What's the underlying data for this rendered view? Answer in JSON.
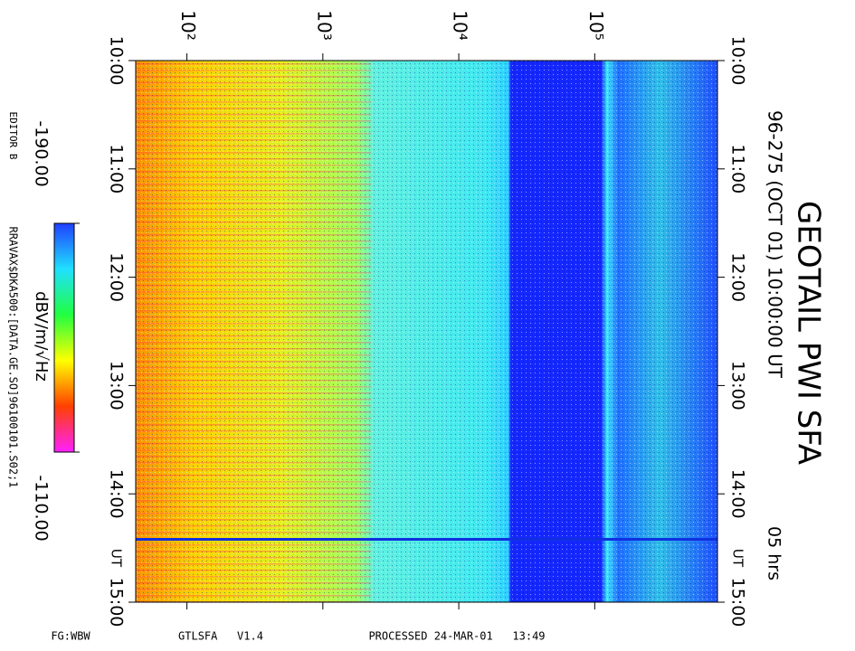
{
  "chart_data": {
    "type": "spectrogram",
    "title": "GEOTAIL PWI SFA",
    "subtitle": "96-275 (OCT 01) 10:00:00 UT",
    "duration_label": "05 hrs",
    "time_unit_label": "UT",
    "xscale": "log",
    "xlim": [
      42,
      800000
    ],
    "xticks": [
      {
        "value": 100,
        "label": "10²"
      },
      {
        "value": 1000,
        "label": "10³"
      },
      {
        "value": 10000,
        "label": "10⁴"
      },
      {
        "value": 100000,
        "label": "10⁵"
      }
    ],
    "ylim": [
      10,
      15
    ],
    "yticks": [
      {
        "value": 10,
        "label": "10:00"
      },
      {
        "value": 11,
        "label": "11:00"
      },
      {
        "value": 12,
        "label": "12:00"
      },
      {
        "value": 13,
        "label": "13:00"
      },
      {
        "value": 14,
        "label": "14:00"
      },
      {
        "value": 15,
        "label": "15:00"
      }
    ],
    "colorbar": {
      "label": "dBV/m/√Hz",
      "ticks": [
        {
          "value": -190,
          "label": "-190.00"
        },
        {
          "value": -110,
          "label": "-110.00"
        }
      ]
    },
    "editor": "EDITOR B",
    "file": "RRAVAX$DKA500:[DATA.GE.SO]96100101.S02;1",
    "footer": [
      "FG:WBW",
      "GTLSFA   V1.4",
      "PROCESSED 24-MAR-01   13:49"
    ]
  }
}
